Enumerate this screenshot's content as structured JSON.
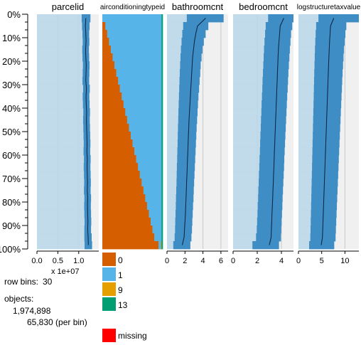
{
  "chart_data": {
    "type": "tableplot",
    "row_axis": {
      "tick_labels": [
        "0%",
        "10%",
        "20%",
        "30%",
        "40%",
        "50%",
        "60%",
        "70%",
        "80%",
        "90%",
        "100%"
      ],
      "bins": 30
    },
    "legend": {
      "categories": [
        {
          "label": "0",
          "color": "#d55e00"
        },
        {
          "label": "1",
          "color": "#56b4e9"
        },
        {
          "label": "9",
          "color": "#e69f00"
        },
        {
          "label": "13",
          "color": "#009e73"
        }
      ],
      "missing": {
        "label": "missing",
        "color": "#ff0000"
      }
    },
    "info": {
      "row_bins_label": "row bins:",
      "row_bins_value": "30",
      "objects_label": "objects:",
      "objects_total": "1,974,898",
      "objects_per_bin": "65,830 (per bin)"
    },
    "columns": [
      {
        "name": "parcelid",
        "kind": "numeric",
        "xlim": [
          0,
          14800000
        ],
        "ticks": [
          0,
          5000000,
          10000000
        ],
        "tick_labels": [
          "0.0",
          "0.5",
          "1.0"
        ],
        "scale_label": "x 1e+07",
        "mean": [
          11700000,
          11600000,
          11700000,
          11750000,
          11650000,
          11700000,
          11800000,
          11750000,
          11700000,
          11850000,
          11750000,
          11800000,
          11900000,
          11850000,
          11900000,
          11950000,
          12000000,
          11950000,
          12050000,
          12000000,
          12050000,
          12100000,
          12050000,
          12150000,
          12100000,
          12150000,
          12200000,
          12150000,
          12250000,
          12300000
        ],
        "sd_low": [
          10700000,
          10800000,
          10900000,
          10950000,
          10850000,
          10900000,
          11000000,
          10950000,
          10900000,
          11050000,
          10950000,
          11000000,
          11100000,
          11050000,
          11100000,
          11150000,
          11200000,
          11150000,
          11250000,
          11200000,
          11250000,
          11300000,
          11250000,
          11350000,
          11300000,
          11350000,
          11400000,
          11350000,
          11350000,
          11400000
        ],
        "sd_high": [
          12800000,
          12600000,
          12500000,
          12550000,
          12450000,
          12500000,
          12600000,
          12550000,
          12500000,
          12650000,
          12550000,
          12600000,
          12700000,
          12650000,
          12700000,
          12750000,
          12800000,
          12750000,
          12850000,
          12800000,
          12850000,
          12900000,
          12850000,
          12950000,
          12900000,
          12950000,
          13000000,
          12950000,
          13100000,
          13200000
        ]
      },
      {
        "name": "airconditioningtypeid",
        "kind": "categorical",
        "proportions": [
          [
            0.0,
            0.98,
            0.0,
            0.02
          ],
          [
            0.05,
            0.93,
            0.0,
            0.02
          ],
          [
            0.08,
            0.9,
            0.0,
            0.02
          ],
          [
            0.11,
            0.87,
            0.0,
            0.02
          ],
          [
            0.14,
            0.84,
            0.0,
            0.02
          ],
          [
            0.17,
            0.81,
            0.0,
            0.02
          ],
          [
            0.2,
            0.78,
            0.0,
            0.02
          ],
          [
            0.23,
            0.75,
            0.0,
            0.02
          ],
          [
            0.26,
            0.72,
            0.0,
            0.02
          ],
          [
            0.29,
            0.69,
            0.0,
            0.02
          ],
          [
            0.32,
            0.66,
            0.0,
            0.02
          ],
          [
            0.35,
            0.63,
            0.0,
            0.02
          ],
          [
            0.38,
            0.6,
            0.0,
            0.02
          ],
          [
            0.41,
            0.57,
            0.0,
            0.02
          ],
          [
            0.44,
            0.54,
            0.0,
            0.02
          ],
          [
            0.47,
            0.51,
            0.0,
            0.02
          ],
          [
            0.5,
            0.48,
            0.0,
            0.02
          ],
          [
            0.53,
            0.45,
            0.0,
            0.02
          ],
          [
            0.56,
            0.42,
            0.0,
            0.02
          ],
          [
            0.59,
            0.39,
            0.0,
            0.02
          ],
          [
            0.62,
            0.36,
            0.0,
            0.02
          ],
          [
            0.65,
            0.33,
            0.0,
            0.02
          ],
          [
            0.68,
            0.3,
            0.0,
            0.02
          ],
          [
            0.71,
            0.27,
            0.0,
            0.02
          ],
          [
            0.74,
            0.24,
            0.0,
            0.02
          ],
          [
            0.77,
            0.21,
            0.0,
            0.02
          ],
          [
            0.8,
            0.18,
            0.0,
            0.02
          ],
          [
            0.83,
            0.15,
            0.0,
            0.02
          ],
          [
            0.86,
            0.12,
            0.0,
            0.02
          ],
          [
            0.93,
            0.04,
            0.01,
            0.02
          ]
        ]
      },
      {
        "name": "bathroomcnt",
        "kind": "numeric",
        "xlim": [
          0,
          6.8
        ],
        "ticks": [
          0,
          2,
          4,
          6
        ],
        "tick_labels": [
          "0",
          "2",
          "4",
          "6"
        ],
        "mean": [
          4.3,
          3.4,
          3.2,
          3.05,
          2.95,
          2.85,
          2.8,
          2.75,
          2.7,
          2.65,
          2.6,
          2.55,
          2.5,
          2.45,
          2.42,
          2.38,
          2.35,
          2.32,
          2.28,
          2.25,
          2.22,
          2.18,
          2.15,
          2.12,
          2.08,
          2.05,
          2.0,
          1.95,
          1.9,
          1.7
        ],
        "sd_low": [
          2.2,
          1.8,
          1.7,
          1.62,
          1.55,
          1.5,
          1.46,
          1.42,
          1.39,
          1.36,
          1.33,
          1.3,
          1.27,
          1.25,
          1.22,
          1.2,
          1.18,
          1.15,
          1.13,
          1.1,
          1.08,
          1.06,
          1.03,
          1.0,
          0.98,
          0.95,
          0.92,
          0.9,
          0.85,
          0.7
        ],
        "sd_high": [
          6.3,
          4.6,
          4.3,
          4.1,
          3.95,
          3.85,
          3.75,
          3.7,
          3.63,
          3.57,
          3.5,
          3.45,
          3.4,
          3.35,
          3.3,
          3.26,
          3.22,
          3.18,
          3.14,
          3.1,
          3.06,
          3.02,
          2.98,
          2.95,
          2.9,
          2.86,
          2.82,
          2.78,
          2.72,
          2.6
        ]
      },
      {
        "name": "bedroomcnt",
        "kind": "numeric",
        "xlim": [
          0,
          5.0
        ],
        "ticks": [
          0,
          2,
          4
        ],
        "tick_labels": [
          "0",
          "2",
          "4"
        ],
        "mean": [
          4.2,
          3.9,
          3.85,
          3.8,
          3.75,
          3.72,
          3.7,
          3.67,
          3.65,
          3.62,
          3.6,
          3.57,
          3.55,
          3.52,
          3.5,
          3.47,
          3.45,
          3.42,
          3.4,
          3.38,
          3.35,
          3.33,
          3.3,
          3.28,
          3.25,
          3.22,
          3.2,
          3.17,
          3.15,
          3.0
        ],
        "sd_low": [
          2.9,
          2.7,
          2.65,
          2.6,
          2.56,
          2.53,
          2.5,
          2.47,
          2.44,
          2.42,
          2.39,
          2.36,
          2.34,
          2.31,
          2.29,
          2.26,
          2.24,
          2.22,
          2.19,
          2.17,
          2.14,
          2.12,
          2.09,
          2.07,
          2.04,
          2.02,
          1.99,
          1.96,
          1.9,
          1.6
        ],
        "sd_high": [
          5.0,
          4.9,
          4.8,
          4.75,
          4.7,
          4.66,
          4.62,
          4.58,
          4.55,
          4.52,
          4.48,
          4.45,
          4.42,
          4.39,
          4.36,
          4.33,
          4.3,
          4.27,
          4.24,
          4.22,
          4.19,
          4.16,
          4.13,
          4.1,
          4.08,
          4.05,
          4.02,
          3.99,
          3.96,
          3.8
        ]
      },
      {
        "name": "logstructuretaxvalue",
        "kind": "numeric",
        "xlim": [
          0,
          13.0
        ],
        "ticks": [
          0,
          5,
          10
        ],
        "tick_labels": [
          "0",
          "5",
          "10"
        ],
        "mean": [
          7.6,
          6.9,
          6.8,
          6.7,
          6.62,
          6.55,
          6.48,
          6.42,
          6.36,
          6.3,
          6.24,
          6.18,
          6.12,
          6.06,
          6.0,
          5.94,
          5.88,
          5.82,
          5.76,
          5.7,
          5.64,
          5.58,
          5.52,
          5.46,
          5.4,
          5.34,
          5.28,
          5.22,
          5.16,
          4.9
        ],
        "sd_low": [
          4.3,
          3.8,
          3.7,
          3.62,
          3.55,
          3.5,
          3.45,
          3.4,
          3.36,
          3.32,
          3.28,
          3.24,
          3.2,
          3.16,
          3.12,
          3.08,
          3.04,
          3.0,
          2.96,
          2.92,
          2.88,
          2.84,
          2.8,
          2.76,
          2.72,
          2.68,
          2.64,
          2.6,
          2.55,
          2.3
        ],
        "sd_high": [
          13.0,
          10.3,
          10.1,
          9.95,
          9.8,
          9.7,
          9.6,
          9.5,
          9.42,
          9.35,
          9.27,
          9.2,
          9.12,
          9.05,
          8.98,
          8.9,
          8.83,
          8.76,
          8.69,
          8.62,
          8.55,
          8.48,
          8.41,
          8.34,
          8.27,
          8.2,
          8.13,
          8.06,
          7.99,
          7.7
        ]
      }
    ]
  }
}
